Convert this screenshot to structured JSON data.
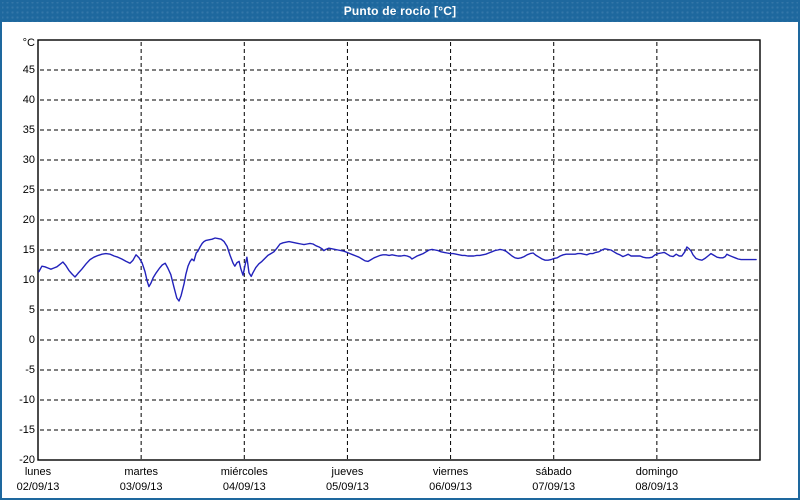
{
  "window": {
    "title": "Punto de rocío [°C]"
  },
  "colors": {
    "titlebar_bg": "#1e689e",
    "frame_border": "#1e689e",
    "title_text": "#ffffff",
    "plot_bg": "#ffffff",
    "plot_border": "#000000",
    "gridline": "#000000",
    "series_line": "#2222bb",
    "label_text": "#000000"
  },
  "chart_data": {
    "type": "line",
    "title": "Punto de rocío [°C]",
    "ylabel": "°C",
    "unit_label": "°C",
    "ylim": [
      -20,
      50
    ],
    "y_ticks": [
      45,
      40,
      35,
      30,
      25,
      20,
      15,
      10,
      5,
      0,
      -5,
      -10,
      -15,
      -20
    ],
    "grid": "dashed",
    "legend_position": "none",
    "x_range_hours": [
      0,
      168
    ],
    "x_day_boundaries_hours": [
      24,
      48,
      72,
      96,
      120,
      144
    ],
    "x_days": [
      {
        "name": "lunes",
        "date": "02/09/13"
      },
      {
        "name": "martes",
        "date": "03/09/13"
      },
      {
        "name": "miércoles",
        "date": "04/09/13"
      },
      {
        "name": "jueves",
        "date": "05/09/13"
      },
      {
        "name": "viernes",
        "date": "06/09/13"
      },
      {
        "name": "sábado",
        "date": "07/09/13"
      },
      {
        "name": "domingo",
        "date": "08/09/13"
      }
    ],
    "series": [
      {
        "name": "Punto de rocío",
        "color": "#2222bb",
        "points_hours_celsius": [
          [
            0.2,
            11.4
          ],
          [
            0.9,
            12.3
          ],
          [
            1.6,
            12.2
          ],
          [
            2.3,
            12.0
          ],
          [
            3.0,
            11.8
          ],
          [
            3.7,
            12.0
          ],
          [
            4.4,
            12.2
          ],
          [
            5.1,
            12.6
          ],
          [
            5.8,
            13.0
          ],
          [
            6.5,
            12.4
          ],
          [
            7.2,
            11.6
          ],
          [
            7.9,
            11.0
          ],
          [
            8.6,
            10.5
          ],
          [
            9.3,
            11.1
          ],
          [
            10.2,
            11.8
          ],
          [
            11.2,
            12.7
          ],
          [
            12.1,
            13.4
          ],
          [
            13.0,
            13.8
          ],
          [
            14.0,
            14.1
          ],
          [
            14.9,
            14.3
          ],
          [
            15.8,
            14.4
          ],
          [
            16.8,
            14.3
          ],
          [
            17.7,
            14.0
          ],
          [
            18.6,
            13.8
          ],
          [
            19.5,
            13.5
          ],
          [
            20.5,
            13.1
          ],
          [
            21.4,
            12.8
          ],
          [
            22.1,
            13.3
          ],
          [
            22.8,
            14.2
          ],
          [
            23.5,
            13.7
          ],
          [
            24.2,
            12.9
          ],
          [
            24.9,
            11.4
          ],
          [
            25.4,
            9.8
          ],
          [
            25.8,
            8.9
          ],
          [
            26.3,
            9.5
          ],
          [
            26.8,
            10.4
          ],
          [
            27.5,
            11.2
          ],
          [
            28.2,
            11.9
          ],
          [
            28.9,
            12.5
          ],
          [
            29.6,
            12.8
          ],
          [
            30.2,
            12.0
          ],
          [
            30.9,
            10.9
          ],
          [
            31.6,
            8.9
          ],
          [
            32.3,
            7.0
          ],
          [
            32.8,
            6.5
          ],
          [
            33.3,
            7.4
          ],
          [
            34.0,
            9.4
          ],
          [
            34.4,
            10.9
          ],
          [
            34.9,
            12.3
          ],
          [
            35.4,
            13.1
          ],
          [
            35.8,
            13.5
          ],
          [
            36.3,
            13.2
          ],
          [
            36.8,
            14.5
          ],
          [
            37.2,
            14.8
          ],
          [
            37.7,
            15.5
          ],
          [
            38.2,
            16.1
          ],
          [
            38.6,
            16.4
          ],
          [
            39.1,
            16.6
          ],
          [
            39.8,
            16.7
          ],
          [
            40.5,
            16.8
          ],
          [
            41.2,
            17.0
          ],
          [
            41.9,
            16.9
          ],
          [
            42.6,
            16.8
          ],
          [
            43.3,
            16.4
          ],
          [
            44.0,
            15.6
          ],
          [
            44.7,
            14.1
          ],
          [
            45.4,
            12.8
          ],
          [
            45.8,
            12.3
          ],
          [
            46.3,
            12.9
          ],
          [
            46.8,
            13.1
          ],
          [
            47.2,
            11.9
          ],
          [
            47.7,
            10.8
          ],
          [
            48.2,
            12.5
          ],
          [
            48.6,
            13.8
          ],
          [
            49.1,
            11.2
          ],
          [
            49.6,
            10.6
          ],
          [
            50.0,
            11.2
          ],
          [
            50.7,
            12.1
          ],
          [
            51.4,
            12.7
          ],
          [
            52.1,
            13.1
          ],
          [
            52.8,
            13.6
          ],
          [
            53.5,
            14.1
          ],
          [
            54.2,
            14.4
          ],
          [
            54.9,
            14.7
          ],
          [
            55.6,
            15.3
          ],
          [
            56.3,
            16.0
          ],
          [
            57.0,
            16.2
          ],
          [
            57.7,
            16.3
          ],
          [
            58.4,
            16.4
          ],
          [
            59.1,
            16.3
          ],
          [
            59.8,
            16.2
          ],
          [
            60.5,
            16.1
          ],
          [
            61.2,
            16.0
          ],
          [
            61.9,
            15.9
          ],
          [
            62.6,
            16.0
          ],
          [
            63.3,
            16.1
          ],
          [
            64.0,
            16.0
          ],
          [
            64.7,
            15.7
          ],
          [
            65.4,
            15.5
          ],
          [
            66.1,
            15.2
          ],
          [
            66.5,
            14.9
          ],
          [
            67.0,
            15.1
          ],
          [
            67.7,
            15.3
          ],
          [
            68.4,
            15.2
          ],
          [
            69.1,
            15.1
          ],
          [
            69.8,
            15.0
          ],
          [
            70.5,
            14.9
          ],
          [
            71.2,
            14.8
          ],
          [
            71.9,
            14.6
          ],
          [
            72.6,
            14.4
          ],
          [
            73.3,
            14.2
          ],
          [
            74.0,
            14.0
          ],
          [
            74.7,
            13.8
          ],
          [
            75.4,
            13.5
          ],
          [
            76.1,
            13.2
          ],
          [
            76.8,
            13.1
          ],
          [
            77.5,
            13.4
          ],
          [
            78.2,
            13.7
          ],
          [
            78.9,
            13.9
          ],
          [
            79.6,
            14.1
          ],
          [
            80.3,
            14.2
          ],
          [
            81.0,
            14.2
          ],
          [
            81.7,
            14.1
          ],
          [
            82.4,
            14.2
          ],
          [
            83.1,
            14.1
          ],
          [
            83.8,
            14.0
          ],
          [
            84.5,
            14.0
          ],
          [
            85.2,
            14.1
          ],
          [
            85.9,
            14.0
          ],
          [
            86.6,
            13.8
          ],
          [
            87.0,
            13.5
          ],
          [
            87.5,
            13.7
          ],
          [
            88.2,
            14.0
          ],
          [
            88.9,
            14.2
          ],
          [
            89.6,
            14.4
          ],
          [
            90.3,
            14.7
          ],
          [
            91.0,
            15.0
          ],
          [
            91.7,
            15.1
          ],
          [
            92.4,
            15.0
          ],
          [
            93.1,
            14.9
          ],
          [
            93.8,
            14.7
          ],
          [
            94.5,
            14.6
          ],
          [
            95.2,
            14.5
          ],
          [
            95.9,
            14.4
          ],
          [
            96.6,
            14.4
          ],
          [
            97.3,
            14.3
          ],
          [
            98.0,
            14.2
          ],
          [
            98.7,
            14.1
          ],
          [
            99.3,
            14.1
          ],
          [
            100.0,
            14.0
          ],
          [
            100.7,
            14.0
          ],
          [
            101.4,
            14.0
          ],
          [
            102.1,
            14.1
          ],
          [
            102.8,
            14.1
          ],
          [
            103.5,
            14.2
          ],
          [
            104.2,
            14.3
          ],
          [
            104.9,
            14.5
          ],
          [
            105.6,
            14.7
          ],
          [
            106.3,
            14.9
          ],
          [
            107.0,
            15.0
          ],
          [
            107.5,
            15.1
          ],
          [
            108.2,
            15.0
          ],
          [
            108.9,
            14.8
          ],
          [
            109.6,
            14.4
          ],
          [
            110.3,
            14.0
          ],
          [
            111.0,
            13.7
          ],
          [
            111.7,
            13.6
          ],
          [
            112.4,
            13.7
          ],
          [
            113.1,
            13.9
          ],
          [
            113.8,
            14.2
          ],
          [
            114.5,
            14.4
          ],
          [
            115.2,
            14.5
          ],
          [
            115.9,
            14.1
          ],
          [
            116.6,
            13.8
          ],
          [
            117.3,
            13.5
          ],
          [
            118.0,
            13.3
          ],
          [
            118.7,
            13.3
          ],
          [
            119.4,
            13.4
          ],
          [
            120.1,
            13.6
          ],
          [
            120.8,
            13.7
          ],
          [
            121.5,
            14.0
          ],
          [
            122.2,
            14.2
          ],
          [
            122.9,
            14.3
          ],
          [
            123.6,
            14.3
          ],
          [
            124.3,
            14.3
          ],
          [
            125.0,
            14.3
          ],
          [
            125.6,
            14.4
          ],
          [
            126.3,
            14.4
          ],
          [
            127.0,
            14.3
          ],
          [
            127.7,
            14.2
          ],
          [
            128.4,
            14.4
          ],
          [
            129.1,
            14.4
          ],
          [
            129.8,
            14.6
          ],
          [
            130.5,
            14.7
          ],
          [
            131.2,
            15.0
          ],
          [
            131.9,
            15.2
          ],
          [
            132.6,
            15.1
          ],
          [
            133.3,
            15.0
          ],
          [
            134.0,
            14.7
          ],
          [
            134.7,
            14.4
          ],
          [
            135.4,
            14.2
          ],
          [
            136.1,
            13.9
          ],
          [
            136.8,
            14.1
          ],
          [
            137.3,
            14.3
          ],
          [
            138.0,
            14.0
          ],
          [
            138.7,
            14.0
          ],
          [
            139.4,
            14.0
          ],
          [
            140.1,
            14.0
          ],
          [
            140.8,
            13.8
          ],
          [
            141.5,
            13.7
          ],
          [
            142.2,
            13.7
          ],
          [
            142.9,
            13.8
          ],
          [
            143.6,
            14.2
          ],
          [
            144.3,
            14.4
          ],
          [
            145.0,
            14.5
          ],
          [
            145.7,
            14.6
          ],
          [
            146.4,
            14.3
          ],
          [
            147.1,
            14.0
          ],
          [
            147.8,
            13.9
          ],
          [
            148.5,
            14.3
          ],
          [
            149.2,
            14.0
          ],
          [
            149.8,
            14.0
          ],
          [
            150.5,
            14.7
          ],
          [
            151.0,
            15.5
          ],
          [
            151.5,
            15.2
          ],
          [
            152.0,
            14.8
          ],
          [
            152.4,
            14.2
          ],
          [
            153.1,
            13.6
          ],
          [
            153.8,
            13.4
          ],
          [
            154.5,
            13.3
          ],
          [
            155.2,
            13.6
          ],
          [
            155.9,
            14.0
          ],
          [
            156.6,
            14.4
          ],
          [
            157.3,
            14.1
          ],
          [
            158.0,
            13.8
          ],
          [
            158.7,
            13.7
          ],
          [
            159.4,
            13.7
          ],
          [
            159.9,
            13.9
          ],
          [
            160.3,
            14.3
          ],
          [
            160.8,
            14.1
          ],
          [
            161.5,
            13.9
          ],
          [
            162.2,
            13.7
          ],
          [
            162.9,
            13.5
          ],
          [
            163.6,
            13.4
          ],
          [
            164.3,
            13.4
          ],
          [
            165.0,
            13.4
          ],
          [
            165.7,
            13.4
          ],
          [
            166.4,
            13.4
          ],
          [
            167.1,
            13.4
          ]
        ]
      }
    ]
  }
}
